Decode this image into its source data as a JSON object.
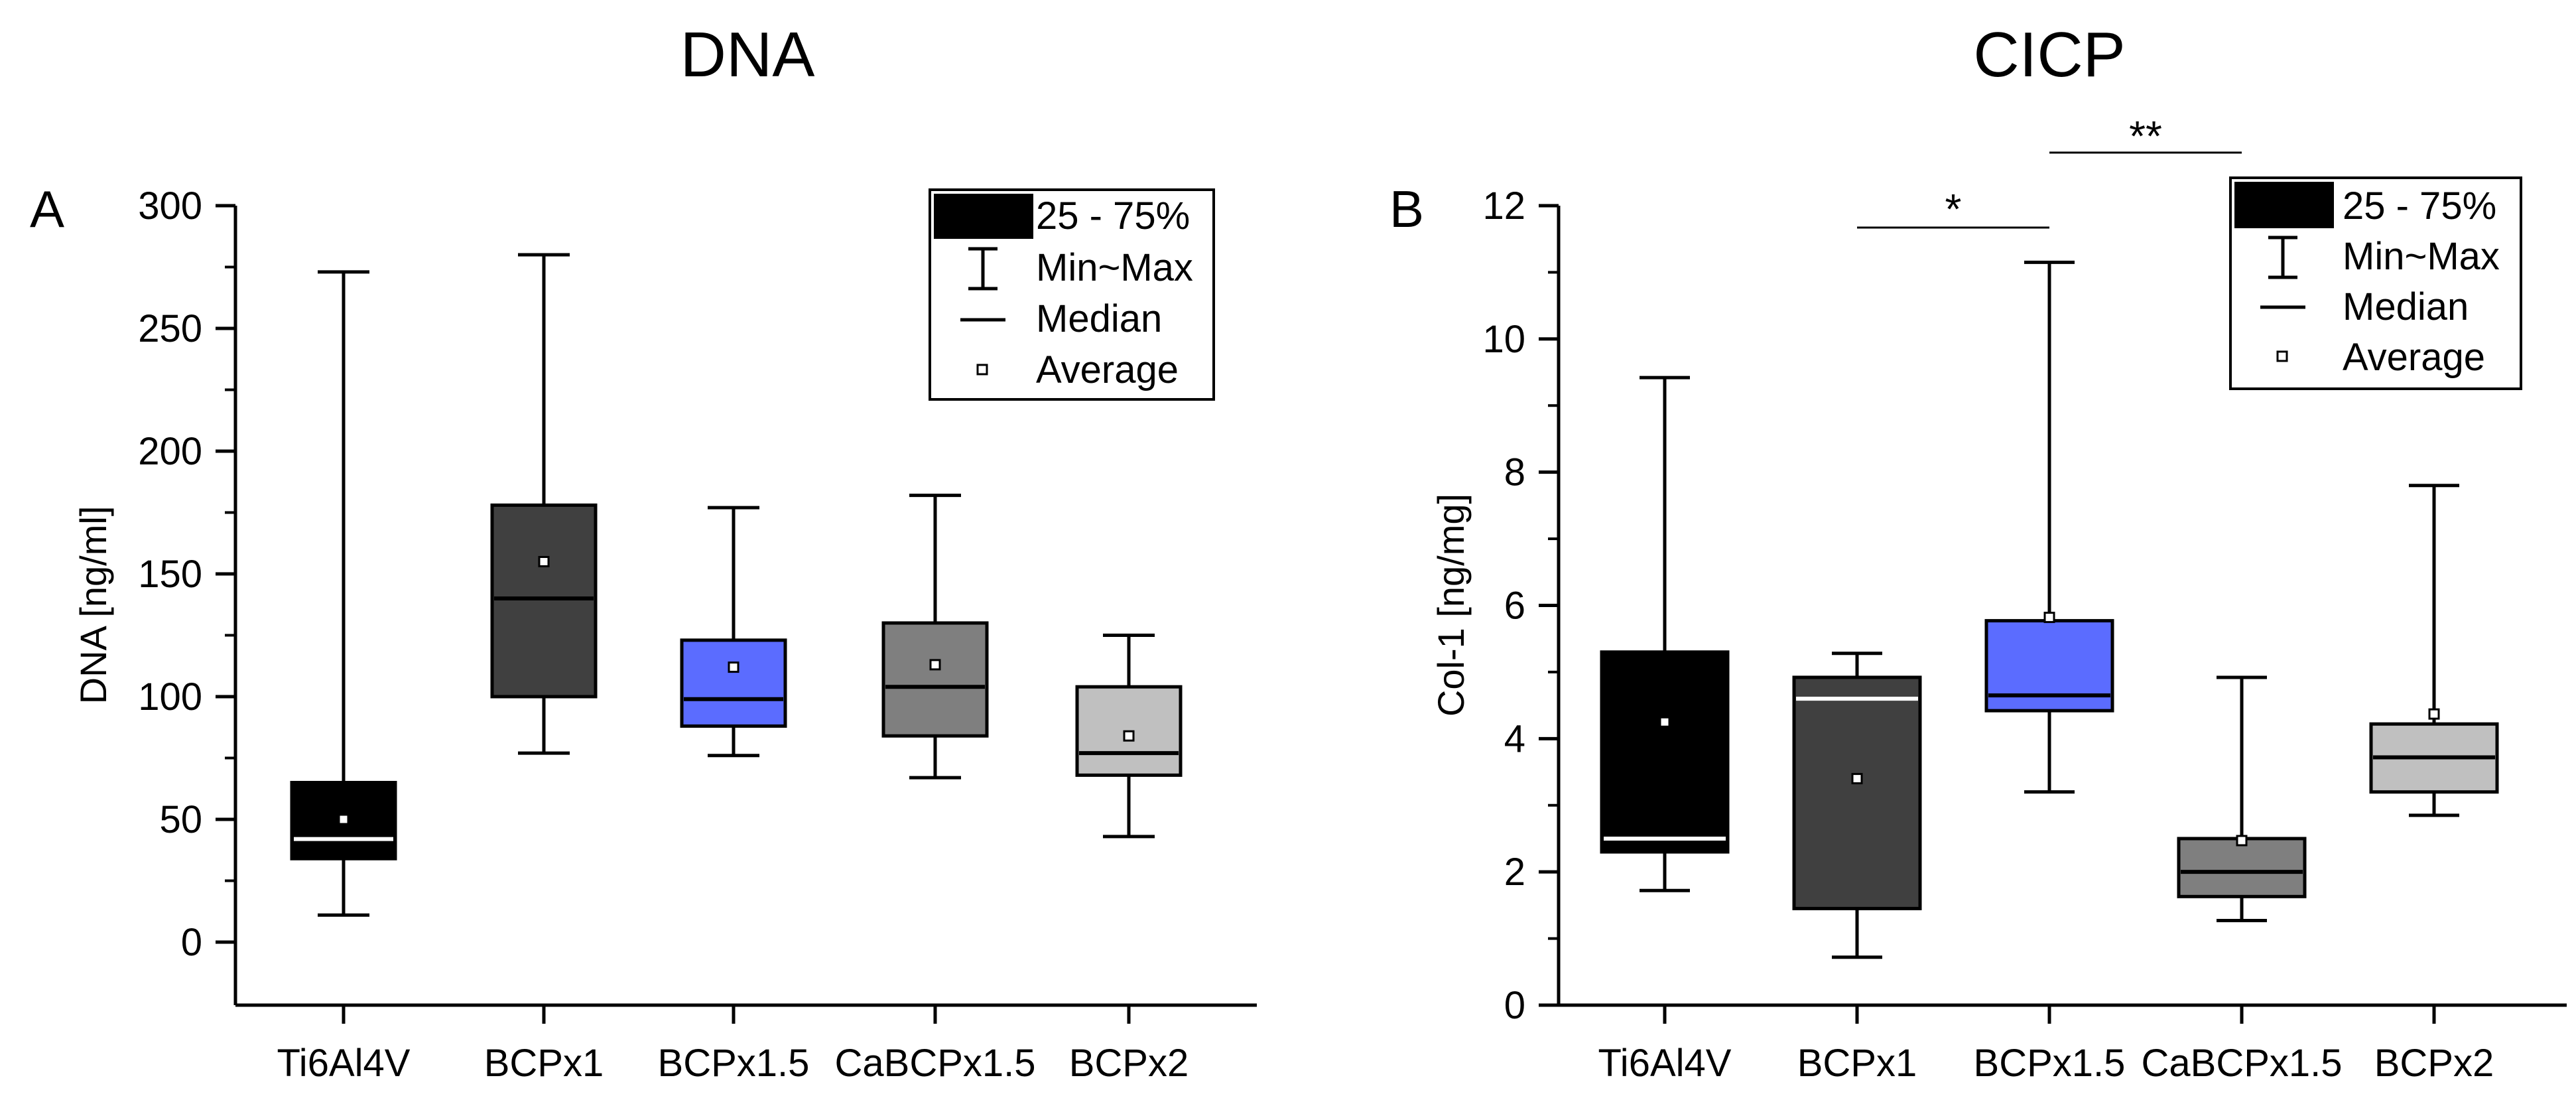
{
  "chart_data": [
    {
      "type": "box",
      "panel_label": "A",
      "title": "DNA",
      "ylabel": "DNA [ng/ml]",
      "xlabel": "",
      "ylim": [
        -25,
        300
      ],
      "yticks": [
        0,
        50,
        100,
        150,
        200,
        250,
        300
      ],
      "yticklabels": [
        "0",
        "50",
        "100",
        "150",
        "200",
        "250",
        "300"
      ],
      "categories": [
        "Ti6Al4V",
        "BCPx1",
        "BCPx1.5",
        "CaBCPx1.5",
        "BCPx2"
      ],
      "boxes": [
        {
          "name": "Ti6Al4V",
          "min": 11,
          "q1": 34,
          "median": 42,
          "q3": 65,
          "max": 273,
          "mean": 50,
          "color": "#000000",
          "median_color": "#ffffff"
        },
        {
          "name": "BCPx1",
          "min": 77,
          "q1": 100,
          "median": 140,
          "q3": 178,
          "max": 280,
          "mean": 155,
          "color": "#404040",
          "median_color": "#000000"
        },
        {
          "name": "BCPx1.5",
          "min": 76,
          "q1": 88,
          "median": 99,
          "q3": 123,
          "max": 177,
          "mean": 112,
          "color": "#5b6cff",
          "median_color": "#000000"
        },
        {
          "name": "CaBCPx1.5",
          "min": 67,
          "q1": 84,
          "median": 104,
          "q3": 130,
          "max": 182,
          "mean": 113,
          "color": "#7f7f7f",
          "median_color": "#000000"
        },
        {
          "name": "BCPx2",
          "min": 43,
          "q1": 68,
          "median": 77,
          "q3": 104,
          "max": 125,
          "mean": 84,
          "color": "#c0c0c0",
          "median_color": "#000000"
        }
      ],
      "significance": [],
      "legend": {
        "location": "top-right",
        "entries": [
          "25 - 75%",
          "Min~Max",
          "Median",
          "Average"
        ]
      }
    },
    {
      "type": "box",
      "panel_label": "B",
      "title": "CICP",
      "ylabel": "Col-1 [ng/mg]",
      "xlabel": "",
      "ylim": [
        0,
        12
      ],
      "yticks": [
        0,
        2,
        4,
        6,
        8,
        10,
        12
      ],
      "yticklabels": [
        "0",
        "2",
        "4",
        "6",
        "8",
        "10",
        "12"
      ],
      "categories": [
        "Ti6Al4V",
        "BCPx1",
        "BCPx1.5",
        "CaBCPx1.5",
        "BCPx2"
      ],
      "boxes": [
        {
          "name": "Ti6Al4V",
          "min": 1.72,
          "q1": 2.3,
          "median": 2.5,
          "q3": 5.3,
          "max": 9.42,
          "mean": 4.25,
          "color": "#000000",
          "median_color": "#ffffff"
        },
        {
          "name": "BCPx1",
          "min": 0.72,
          "q1": 1.45,
          "median": 4.6,
          "q3": 4.92,
          "max": 5.28,
          "mean": 3.4,
          "color": "#404040",
          "median_color": "#ffffff"
        },
        {
          "name": "BCPx1.5",
          "min": 3.2,
          "q1": 4.42,
          "median": 4.65,
          "q3": 5.77,
          "max": 11.15,
          "mean": 5.82,
          "color": "#5b6cff",
          "median_color": "#000000"
        },
        {
          "name": "CaBCPx1.5",
          "min": 1.27,
          "q1": 1.63,
          "median": 2.0,
          "q3": 2.5,
          "max": 4.92,
          "mean": 2.47,
          "color": "#7f7f7f",
          "median_color": "#000000"
        },
        {
          "name": "BCPx2",
          "min": 2.85,
          "q1": 3.2,
          "median": 3.72,
          "q3": 4.22,
          "max": 7.8,
          "mean": 4.37,
          "color": "#c0c0c0",
          "median_color": "#000000"
        }
      ],
      "significance": [
        {
          "from": "BCPx1",
          "to": "BCPx1.5",
          "label": "*"
        },
        {
          "from": "BCPx1.5",
          "to": "CaBCPx1.5",
          "label": "**"
        }
      ],
      "legend": {
        "location": "top-right",
        "entries": [
          "25 - 75%",
          "Min~Max",
          "Median",
          "Average"
        ]
      }
    }
  ]
}
